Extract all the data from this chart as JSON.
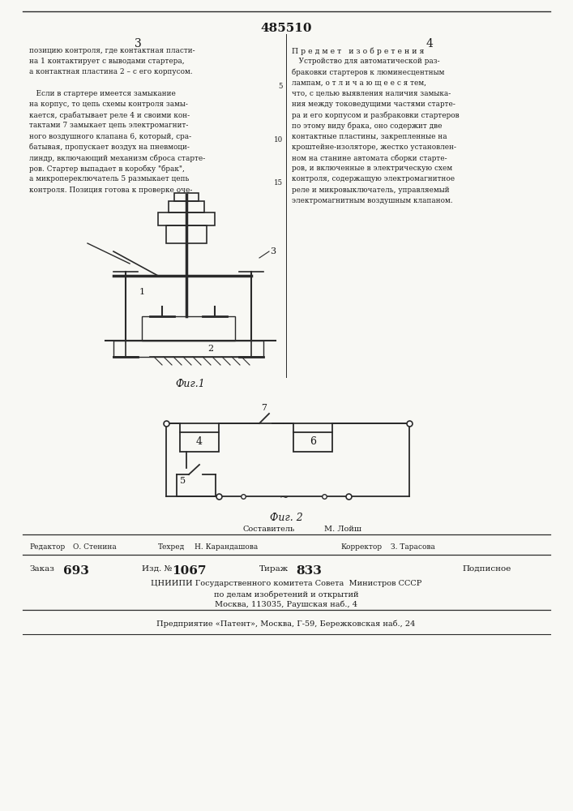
{
  "patent_number": "485510",
  "page_col_left": "3",
  "page_col_right": "4",
  "col_left_text": [
    "позицию контроля, где контактная пласти-",
    "на 1 контактирует с выводами стартера,",
    "а контактная пластина 2 – с его корпусом.",
    "",
    "   Если в стартере имеется замыкание",
    "на корпус, то цепь схемы контроля замы-",
    "кается, срабатывает реле 4 и своими кон-",
    "тактами 7 замыкает цепь электромагнит-",
    "ного воздушного клапана 6, который, сра-",
    "батывая, пропускает воздух на пневмоци-",
    "линдр, включающий механизм сброса старте-",
    "ров. Стартер выпадает в коробку \"брак\",",
    "а микропереключатель 5 размыкает цепь",
    "контроля. Позиция готова к проверке оче-"
  ],
  "col_right_header": "П р е д м е т   и з о б р е т е н и я",
  "col_right_text": [
    "   Устройство для автоматической раз-",
    "браковки стартеров к люминесцентным",
    "лампам, о т л и ч а ю щ е е с я тем,",
    "что, с целью выявления наличия замыка-",
    "ния между токоведущими частями старте-",
    "ра и его корпусом и разбраковки стартеров",
    "по этому виду брака, оно содержит две",
    "контактные пластины, закрепленные на",
    "кроштейне-изоляторе, жестко установлен-",
    "ном на станине автомата сборки старте-",
    "ров, и включенные в электрическую схем",
    "контроля, содержащую электромагнитное",
    "реле и микровыключатель, управляемый",
    "электромагнитным воздушным клапаном."
  ],
  "fig1_label": "Фиг.1",
  "fig2_label": "Фиг. 2",
  "footer_composer_label": "Составитель",
  "footer_composer": "М. Лойш",
  "footer_editor_label": "Редактор",
  "footer_editor": "О. Стенина",
  "footer_techred_label": "Техред",
  "footer_techred": "Н. Карандашова",
  "footer_corrector_label": "Корректор",
  "footer_corrector": "З. Тарасова",
  "footer_order_label": "Заказ",
  "footer_order": "693",
  "footer_izd_label": "Изд. №",
  "footer_izd": "1067",
  "footer_tirazh_label": "Тираж",
  "footer_tirazh": "833",
  "footer_podpisnoe": "Подписное",
  "footer_cniipi": "ЦНИИПИ Государственного комитета Совета  Министров СССР",
  "footer_cniipi2": "по делам изобретений и открытий",
  "footer_cniipi3": "Москва, 113035, Раушская наб., 4",
  "footer_predpr": "Предприятие «Патент», Москва, Г-59, Бережковская наб., 24",
  "bg_color": "#f8f8f4",
  "text_color": "#1a1a1a",
  "line_color": "#2a2a2a"
}
